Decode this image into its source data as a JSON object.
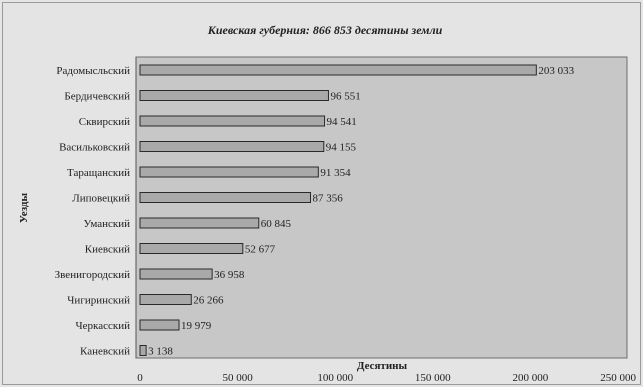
{
  "chart_data": {
    "type": "bar",
    "orientation": "horizontal",
    "title": "Киевская губерния: 866 853 десятины земли",
    "xlabel": "Десятины",
    "ylabel": "Уезды",
    "categories": [
      "Радомысльский",
      "Бердичевский",
      "Сквирский",
      "Васильковский",
      "Таращанский",
      "Липовецкий",
      "Уманский",
      "Киевский",
      "Звенигородский",
      "Чигиринский",
      "Черкасский",
      "Каневский"
    ],
    "values": [
      203033,
      96551,
      94541,
      94155,
      91354,
      87356,
      60845,
      52677,
      36958,
      26266,
      19979,
      3138
    ],
    "value_labels": [
      "203 033",
      "96 551",
      "94 541",
      "94 155",
      "91 354",
      "87 356",
      "60 845",
      "52 677",
      "36 958",
      "26 266",
      "19 979",
      "3 138"
    ],
    "xlim": [
      0,
      250000
    ],
    "xticks": [
      0,
      50000,
      100000,
      150000,
      200000,
      250000
    ],
    "xtick_labels": [
      "0",
      "50 000",
      "100 000",
      "150 000",
      "200 000",
      "250 000"
    ],
    "grid": false,
    "legend": "none",
    "colors": {
      "bar": "#a9a9a9",
      "plot_background": "#c7c7c7",
      "page_background": "#e4e4e4"
    }
  }
}
